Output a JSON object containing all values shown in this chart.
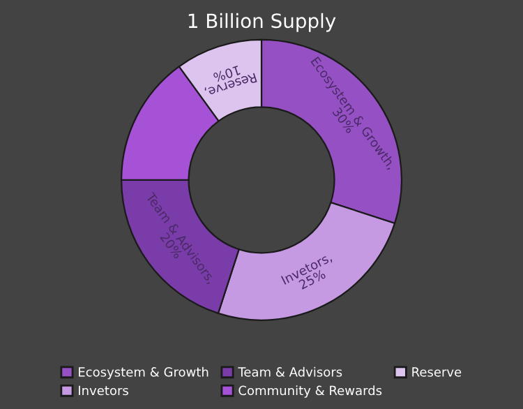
{
  "chart_data": {
    "type": "donut",
    "title": "1 Billion Supply",
    "categories": [
      "Ecosystem & Growth",
      "Invetors",
      "Team & Advisors",
      "Community & Rewards",
      "Reserve"
    ],
    "values": [
      30,
      25,
      20,
      15,
      10
    ],
    "colors": [
      "#9550c4",
      "#c59ae2",
      "#7a3ca8",
      "#a552d6",
      "#dcc4ef"
    ],
    "value_labels": [
      "Ecosystem & Growth, 30%",
      "Invetors, 25%",
      "Team & Advisors, 20%",
      null,
      "Reserve, 10%"
    ],
    "legend": "bottom"
  }
}
